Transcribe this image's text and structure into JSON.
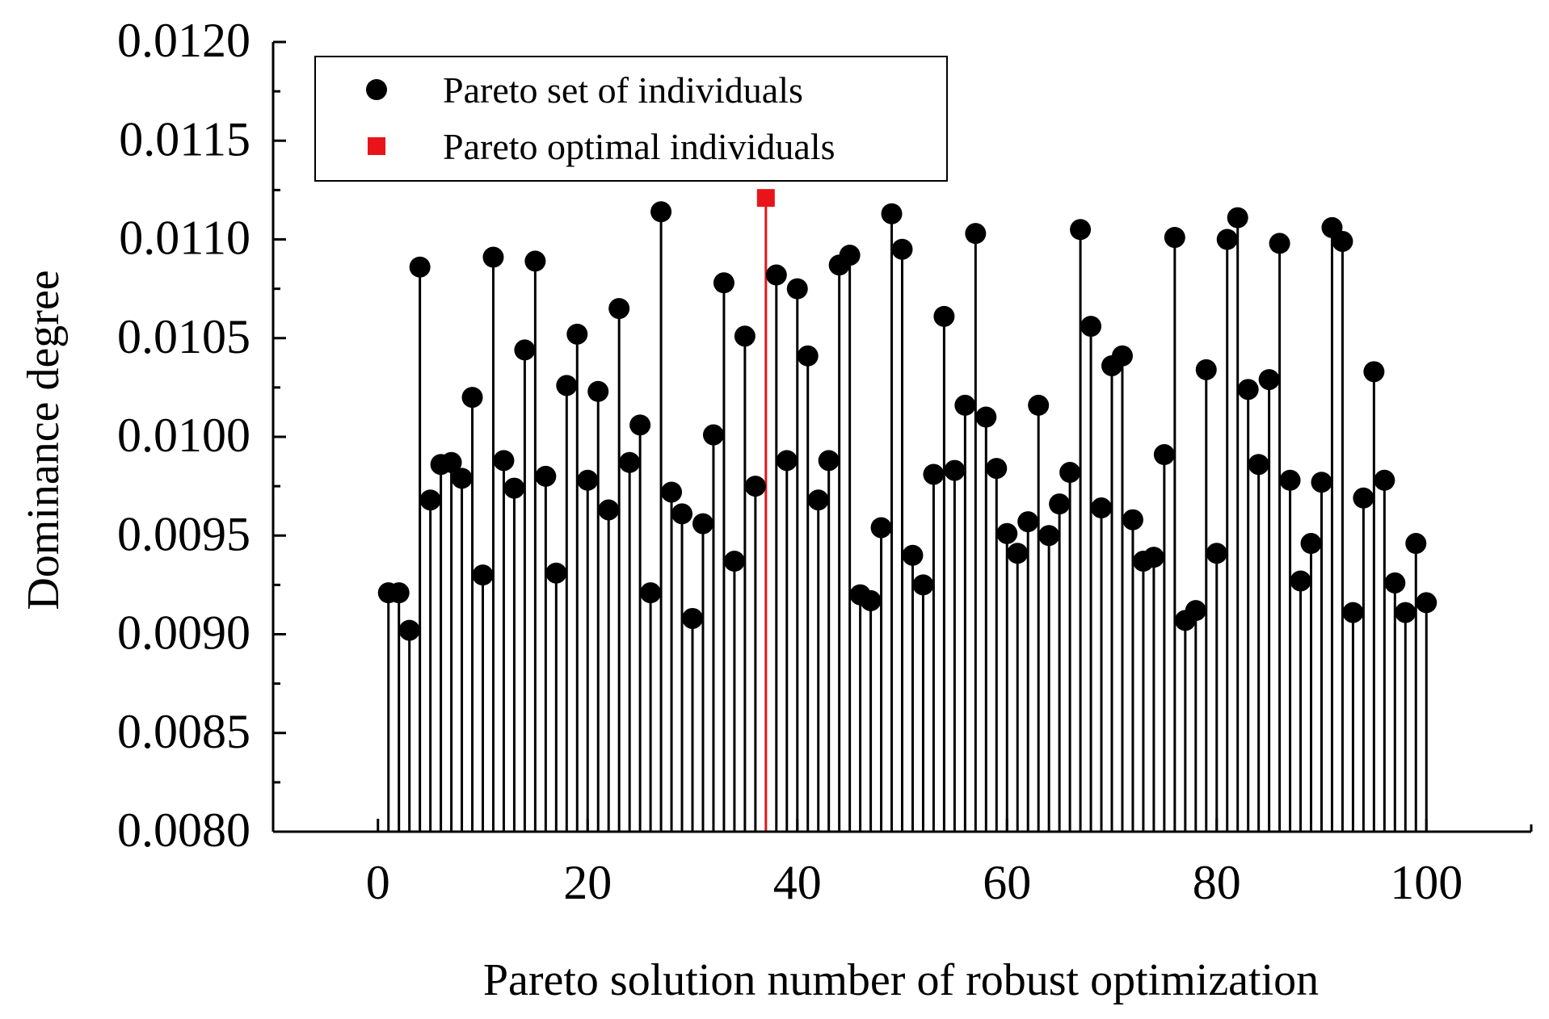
{
  "chart_data": {
    "type": "stem",
    "title": "",
    "xlabel": "Pareto solution number of robust optimization",
    "ylabel": "Dominance degree",
    "xlim": [
      -10,
      110
    ],
    "ylim": [
      0.008,
      0.012
    ],
    "grid": false,
    "x_ticks": [
      0,
      20,
      40,
      60,
      80,
      100
    ],
    "x_tick_labels": [
      "0",
      "20",
      "40",
      "60",
      "80",
      "100"
    ],
    "y_ticks": [
      0.008,
      0.0085,
      0.009,
      0.0095,
      0.01,
      0.0105,
      0.011,
      0.0115,
      0.012
    ],
    "y_tick_labels": [
      "0.0080",
      "0.0085",
      "0.0090",
      "0.0095",
      "0.0100",
      "0.0105",
      "0.0110",
      "0.0115",
      "0.0120"
    ],
    "legend": {
      "placement": "top-left",
      "entries": [
        {
          "label": "Pareto set of individuals",
          "marker": "circle",
          "color": "#000000"
        },
        {
          "label": "Pareto optimal individuals",
          "marker": "square",
          "color": "#e8141a"
        }
      ]
    },
    "series": [
      {
        "name": "Pareto set of individuals",
        "marker": "circle",
        "color": "#000000",
        "x": [
          1,
          2,
          3,
          4,
          5,
          6,
          7,
          8,
          9,
          10,
          11,
          12,
          13,
          14,
          15,
          16,
          17,
          18,
          19,
          20,
          21,
          22,
          23,
          24,
          25,
          26,
          27,
          28,
          29,
          30,
          31,
          32,
          33,
          34,
          35,
          36,
          38,
          39,
          40,
          41,
          42,
          43,
          44,
          45,
          46,
          47,
          48,
          49,
          50,
          51,
          52,
          53,
          54,
          55,
          56,
          57,
          58,
          59,
          60,
          61,
          62,
          63,
          64,
          65,
          66,
          67,
          68,
          69,
          70,
          71,
          72,
          73,
          74,
          75,
          76,
          77,
          78,
          79,
          80,
          81,
          82,
          83,
          84,
          85,
          86,
          87,
          88,
          89,
          90,
          91,
          92,
          93,
          94,
          95,
          96,
          97,
          98,
          99,
          100
        ],
        "y": [
          0.00921,
          0.00921,
          0.00902,
          0.01086,
          0.00968,
          0.00986,
          0.00987,
          0.00979,
          0.0102,
          0.0093,
          0.01091,
          0.00988,
          0.00974,
          0.01044,
          0.01089,
          0.0098,
          0.00931,
          0.01026,
          0.01052,
          0.00978,
          0.01023,
          0.00963,
          0.01065,
          0.00987,
          0.01006,
          0.00921,
          0.01114,
          0.00972,
          0.00961,
          0.00908,
          0.00956,
          0.01001,
          0.01078,
          0.00937,
          0.01051,
          0.00975,
          0.01082,
          0.00988,
          0.01075,
          0.01041,
          0.00968,
          0.00988,
          0.01087,
          0.01092,
          0.0092,
          0.00917,
          0.00954,
          0.01113,
          0.01095,
          0.0094,
          0.00925,
          0.00981,
          0.01061,
          0.00983,
          0.01016,
          0.01103,
          0.0101,
          0.00984,
          0.00951,
          0.00941,
          0.00957,
          0.01016,
          0.0095,
          0.00966,
          0.00982,
          0.01105,
          0.01056,
          0.00964,
          0.01036,
          0.01041,
          0.00958,
          0.00937,
          0.00939,
          0.00991,
          0.01101,
          0.00907,
          0.00912,
          0.01034,
          0.00941,
          0.011,
          0.01111,
          0.01024,
          0.00986,
          0.01029,
          0.01098,
          0.00978,
          0.00927,
          0.00946,
          0.00977,
          0.01106,
          0.01099,
          0.00911,
          0.00969,
          0.01033,
          0.00978,
          0.00926,
          0.00911,
          0.00946,
          0.00916
        ]
      },
      {
        "name": "Pareto optimal individuals",
        "marker": "square",
        "color": "#e8141a",
        "x": [
          37
        ],
        "y": [
          0.01121
        ]
      }
    ]
  }
}
